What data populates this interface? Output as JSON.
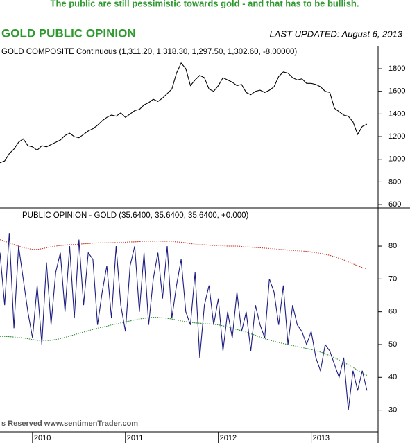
{
  "header": {
    "headline": "The public are still pessimistic towards gold - and that has to be bullish.",
    "title": "GOLD PUBLIC OPINION",
    "updated": "LAST UPDATED:  August 6, 2013",
    "footer": "s Reserved  www.sentimenTrader.com"
  },
  "chart_data": [
    {
      "type": "line",
      "xlim": [
        2009.65,
        2013.72
      ],
      "ylim": [
        570,
        1990
      ],
      "yticks": [
        600,
        800,
        1000,
        1200,
        1400,
        1600,
        1800
      ],
      "x": [
        2009.65,
        2009.7,
        2009.75,
        2009.8,
        2009.85,
        2009.9,
        2009.95,
        2010,
        2010.05,
        2010.1,
        2010.15,
        2010.2,
        2010.25,
        2010.3,
        2010.35,
        2010.4,
        2010.45,
        2010.5,
        2010.55,
        2010.6,
        2010.65,
        2010.7,
        2010.75,
        2010.8,
        2010.85,
        2010.9,
        2010.95,
        2011,
        2011.05,
        2011.1,
        2011.15,
        2011.2,
        2011.25,
        2011.3,
        2011.35,
        2011.4,
        2011.45,
        2011.5,
        2011.55,
        2011.6,
        2011.65,
        2011.7,
        2011.75,
        2011.8,
        2011.85,
        2011.9,
        2011.95,
        2012,
        2012.05,
        2012.1,
        2012.15,
        2012.2,
        2012.25,
        2012.3,
        2012.35,
        2012.4,
        2012.45,
        2012.5,
        2012.55,
        2012.6,
        2012.65,
        2012.7,
        2012.75,
        2012.8,
        2012.85,
        2012.9,
        2012.95,
        2013,
        2013.05,
        2013.1,
        2013.15,
        2013.2,
        2013.25,
        2013.3,
        2013.35,
        2013.4,
        2013.45,
        2013.5,
        2013.55,
        2013.6
      ],
      "series": [
        {
          "name": "GOLD COMPOSITE Continuous (1,311.20, 1,318.30, 1,297.50, 1,302.60, -8.00000)",
          "color": "#000000",
          "style": "solid",
          "values": [
            970,
            985,
            1050,
            1090,
            1150,
            1180,
            1120,
            1110,
            1080,
            1120,
            1110,
            1130,
            1150,
            1170,
            1210,
            1230,
            1200,
            1190,
            1220,
            1250,
            1270,
            1300,
            1340,
            1370,
            1390,
            1380,
            1410,
            1370,
            1400,
            1430,
            1440,
            1480,
            1500,
            1530,
            1510,
            1540,
            1580,
            1620,
            1760,
            1850,
            1800,
            1650,
            1700,
            1740,
            1720,
            1620,
            1600,
            1650,
            1720,
            1700,
            1680,
            1650,
            1660,
            1590,
            1570,
            1600,
            1610,
            1590,
            1610,
            1640,
            1730,
            1770,
            1760,
            1720,
            1700,
            1710,
            1670,
            1670,
            1660,
            1640,
            1600,
            1590,
            1450,
            1420,
            1390,
            1380,
            1330,
            1220,
            1290,
            1310
          ]
        }
      ]
    },
    {
      "type": "line",
      "xlim": [
        2009.65,
        2013.72
      ],
      "xticks": [
        2010,
        2011,
        2012,
        2013
      ],
      "ylim": [
        24,
        91
      ],
      "yticks": [
        30,
        40,
        50,
        60,
        70,
        80
      ],
      "x": [
        2009.65,
        2009.7,
        2009.75,
        2009.8,
        2009.85,
        2009.9,
        2009.95,
        2010,
        2010.05,
        2010.1,
        2010.15,
        2010.2,
        2010.25,
        2010.3,
        2010.35,
        2010.4,
        2010.45,
        2010.5,
        2010.55,
        2010.6,
        2010.65,
        2010.7,
        2010.75,
        2010.8,
        2010.85,
        2010.9,
        2010.95,
        2011,
        2011.05,
        2011.1,
        2011.15,
        2011.2,
        2011.25,
        2011.3,
        2011.35,
        2011.4,
        2011.45,
        2011.5,
        2011.55,
        2011.6,
        2011.65,
        2011.7,
        2011.75,
        2011.8,
        2011.85,
        2011.9,
        2011.95,
        2012,
        2012.05,
        2012.1,
        2012.15,
        2012.2,
        2012.25,
        2012.3,
        2012.35,
        2012.4,
        2012.45,
        2012.5,
        2012.55,
        2012.6,
        2012.65,
        2012.7,
        2012.75,
        2012.8,
        2012.85,
        2012.9,
        2012.95,
        2013,
        2013.05,
        2013.1,
        2013.15,
        2013.2,
        2013.25,
        2013.3,
        2013.35,
        2013.4,
        2013.45,
        2013.5,
        2013.55,
        2013.6
      ],
      "series": [
        {
          "name": "PUBLIC OPINION - GOLD (35.6400, 35.6400, 35.6400, +0.000)",
          "color": "#1c1c80",
          "style": "solid",
          "values": [
            78,
            62,
            84,
            55,
            80,
            70,
            60,
            52,
            68,
            50,
            75,
            56,
            72,
            78,
            60,
            80,
            58,
            82,
            62,
            78,
            76,
            56,
            66,
            74,
            58,
            80,
            62,
            54,
            74,
            80,
            60,
            78,
            56,
            70,
            78,
            64,
            80,
            58,
            68,
            76,
            60,
            56,
            72,
            46,
            62,
            68,
            56,
            64,
            48,
            60,
            52,
            66,
            54,
            60,
            48,
            62,
            56,
            52,
            70,
            66,
            56,
            68,
            50,
            62,
            56,
            54,
            50,
            54,
            46,
            42,
            50,
            48,
            44,
            40,
            46,
            30,
            42,
            36,
            42,
            36
          ]
        },
        {
          "color": "#c0392b",
          "style": "dotted",
          "values": [
            82,
            81.5,
            81,
            80.5,
            80,
            79.5,
            79.3,
            79,
            79,
            79.2,
            79.5,
            79.8,
            80,
            80.2,
            80.3,
            80.5,
            80.5,
            80.6,
            80.7,
            80.8,
            80.9,
            81,
            81,
            81,
            81,
            81.1,
            81.2,
            81.2,
            81.3,
            81.3,
            81.4,
            81.4,
            81.5,
            81.5,
            81.6,
            81.5,
            81.5,
            81.4,
            81.3,
            81.2,
            81,
            80.8,
            80.6,
            80.5,
            80.4,
            80.3,
            80.2,
            80.2,
            80.1,
            80,
            80,
            80,
            79.9,
            79.8,
            79.7,
            79.6,
            79.5,
            79.4,
            79.3,
            79.2,
            79,
            78.9,
            78.8,
            78.7,
            78.6,
            78.5,
            78.4,
            78.2,
            78,
            77.8,
            77.5,
            77.2,
            76.8,
            76.3,
            75.8,
            75.2,
            74.6,
            74,
            73.5,
            73
          ]
        },
        {
          "color": "#2e8b2e",
          "style": "dotted",
          "values": [
            52.5,
            52.5,
            52.4,
            52.3,
            52.2,
            52,
            51.8,
            51.5,
            51.3,
            51.2,
            51.2,
            51.3,
            51.5,
            51.8,
            52.2,
            52.6,
            53,
            53.4,
            53.8,
            54.2,
            54.6,
            55,
            55.3,
            55.6,
            56,
            56.3,
            56.6,
            56.9,
            57.2,
            57.5,
            57.8,
            58,
            58.2,
            58.3,
            58.3,
            58.2,
            58,
            57.8,
            57.5,
            57.2,
            57,
            56.8,
            56.6,
            56.5,
            56.4,
            56.3,
            56.2,
            56,
            55.7,
            55.4,
            55,
            54.6,
            54.2,
            53.8,
            53.3,
            52.8,
            52.3,
            51.8,
            51.4,
            51,
            50.6,
            50.3,
            50,
            49.7,
            49.4,
            49.1,
            48.8,
            48.5,
            48.1,
            47.7,
            47.2,
            46.6,
            46,
            45.3,
            44.6,
            43.8,
            43,
            42.2,
            41.4,
            40.6
          ]
        }
      ]
    }
  ]
}
